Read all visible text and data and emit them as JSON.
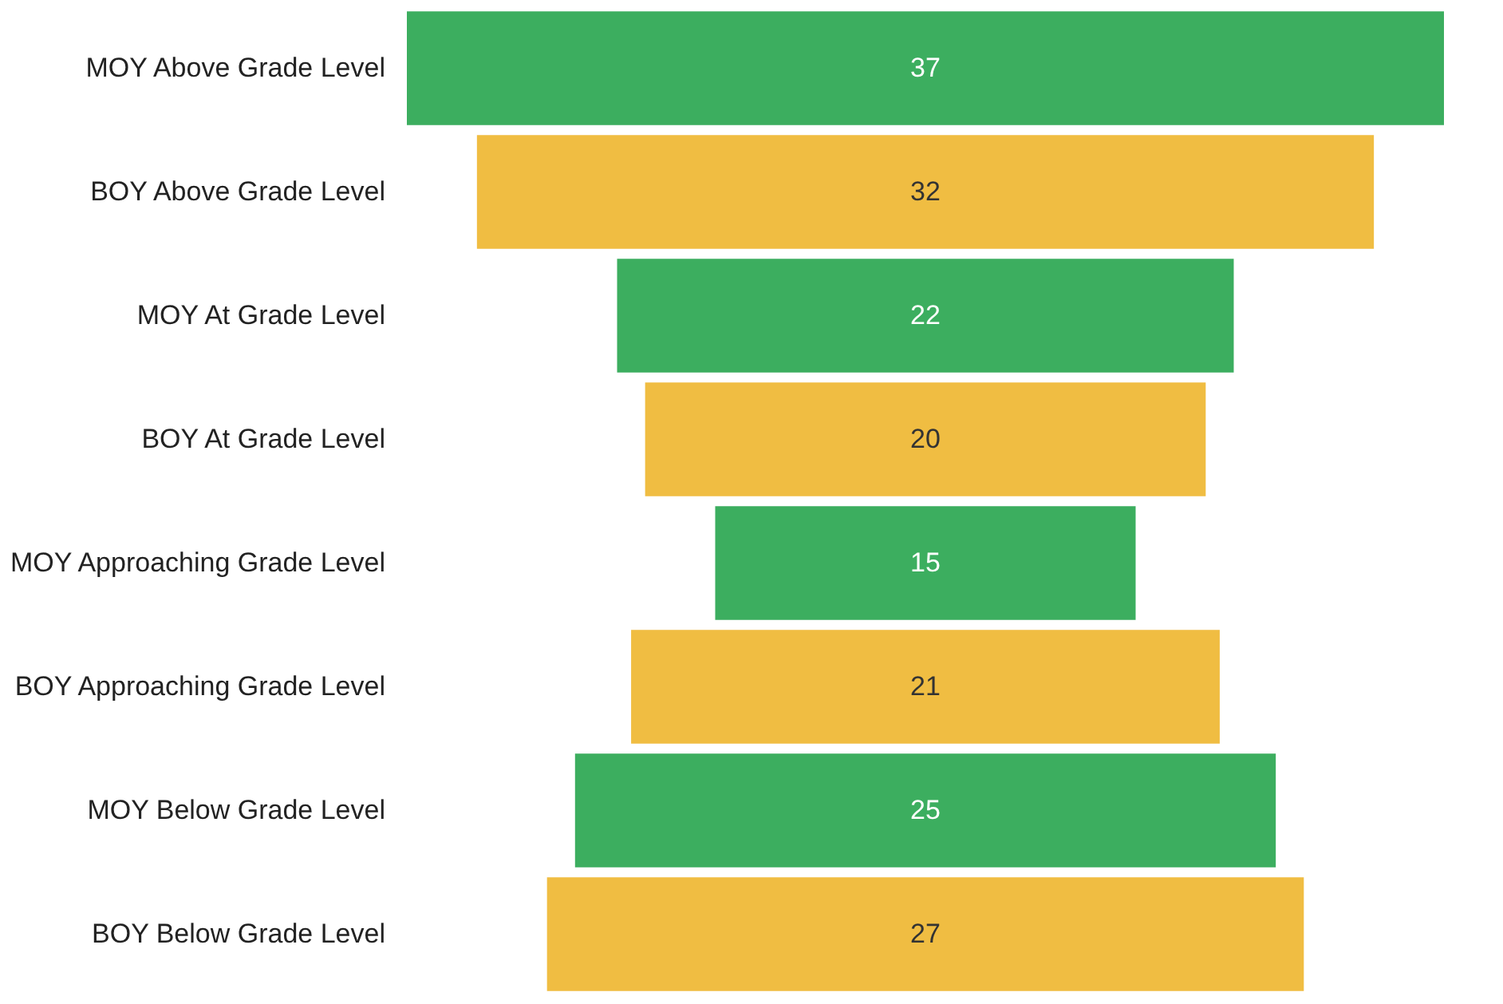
{
  "chart_data": {
    "type": "other",
    "categories": [
      "MOY Above Grade Level",
      "BOY Above Grade Level",
      "MOY At Grade Level",
      "BOY At Grade Level",
      "MOY Approaching Grade Level",
      "BOY Approaching Grade Level",
      "MOY Below Grade Level",
      "BOY Below Grade Level"
    ],
    "values": [
      37,
      32,
      22,
      20,
      15,
      21,
      25,
      27
    ],
    "colors": [
      "#3cae5f",
      "#f0bd42",
      "#3cae5f",
      "#f0bd42",
      "#3cae5f",
      "#f0bd42",
      "#3cae5f",
      "#f0bd42"
    ],
    "data_labels": true
  }
}
